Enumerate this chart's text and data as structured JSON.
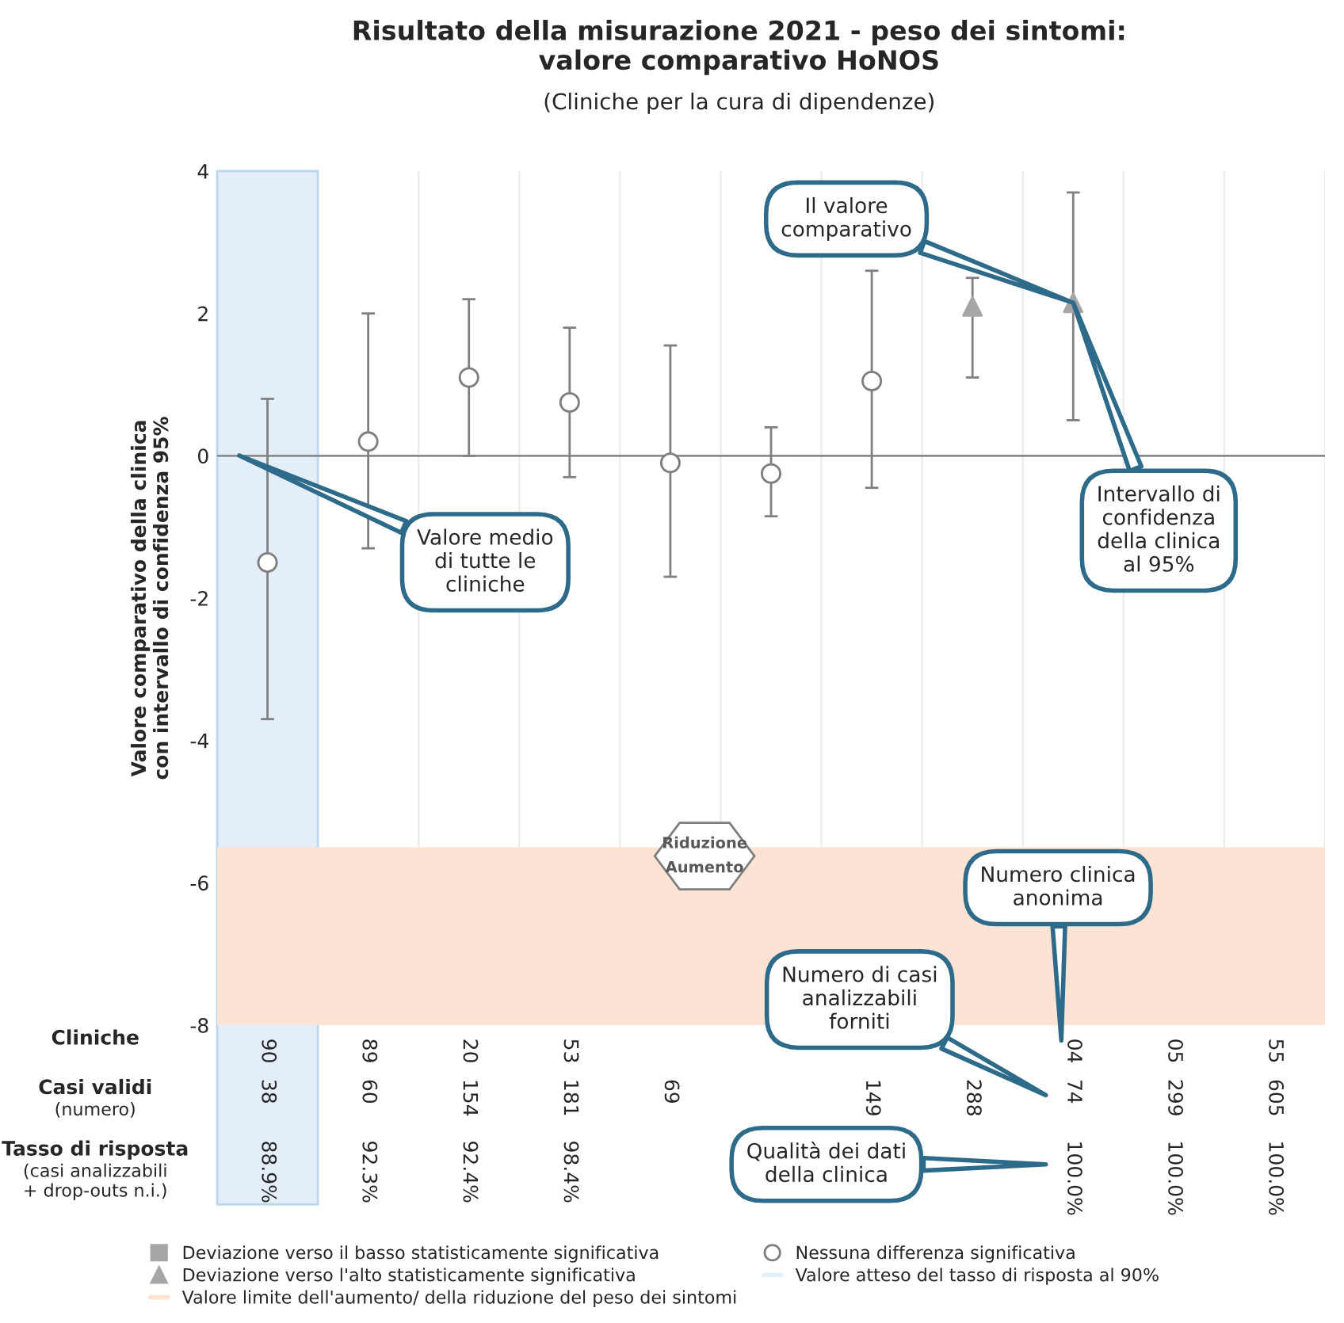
{
  "chart_data": {
    "type": "scatter",
    "title": "Risultato della misurazione 2021 - peso dei sintomi:\nvalore comparativo HoNOS",
    "subtitle": "(Cliniche per la cura di dipendenze)",
    "ylabel": "Valore comparativo della clinica\ncon intervallo di confidenza 95%",
    "categories": [
      "90",
      "89",
      "20",
      "53",
      null,
      null,
      null,
      null,
      "04",
      "05",
      "55"
    ],
    "series": [
      {
        "name": "Deviazione verso il basso statisticamente significativa",
        "color": "#a6a6a6",
        "marker": "square",
        "values": [
          null,
          null,
          null,
          null,
          null,
          null,
          null,
          null,
          null,
          null,
          null
        ],
        "errors": [
          null,
          null,
          null,
          null,
          null,
          null,
          null,
          null,
          null,
          null,
          null
        ]
      },
      {
        "name": "Deviazione verso l'alto statisticamente significativa",
        "color": "#a6a6a6",
        "marker": "triangle",
        "values": [
          null,
          null,
          null,
          null,
          null,
          null,
          null,
          2.1,
          2.15,
          null,
          null
        ],
        "errors": [
          null,
          null,
          null,
          null,
          null,
          null,
          null,
          [
            1.1,
            2.5
          ],
          [
            0.5,
            3.7
          ],
          null,
          null
        ]
      },
      {
        "name": "Nessuna differenza significativa",
        "color": "#7f7f7f",
        "marker": "circle",
        "values": [
          -1.5,
          0.2,
          1.1,
          0.75,
          -0.1,
          -0.25,
          1.05,
          null,
          null,
          null,
          null
        ],
        "errors": [
          [
            -3.7,
            0.8
          ],
          [
            -1.3,
            2.0
          ],
          [
            0.0,
            2.2
          ],
          [
            -0.3,
            1.8
          ],
          [
            -1.7,
            1.55
          ],
          [
            -0.85,
            0.4
          ],
          [
            -0.45,
            2.6
          ],
          null,
          null,
          null,
          null
        ]
      }
    ],
    "ylim": [
      -8,
      4
    ],
    "yticks": [
      -8,
      -6,
      -4,
      -2,
      0,
      2,
      4
    ],
    "grid": "x",
    "legend": "bottom",
    "ref_lines": [
      {
        "axis": "y",
        "value": 0,
        "label": null,
        "color": "#8c8c8c"
      }
    ],
    "bands": [
      {
        "axis": "y",
        "from": -8,
        "to": -5.5,
        "label": "Valore limite dell'aumento/ della riduzione del peso dei sintomi",
        "color": "#fde3d3"
      },
      {
        "axis": "x",
        "from": "90",
        "to": "90",
        "label": "Valore atteso del tasso di risposta al 90%",
        "color": "#e3eef9"
      }
    ],
    "annotations": [
      "Cliniche",
      "Casi validi",
      "(numero)",
      "Tasso di risposta",
      "(casi analizzabili\n+ drop-outs n.i.)",
      "38",
      "60",
      "154",
      "181",
      "69",
      "149",
      "288",
      "74",
      "299",
      "605",
      "88.9%",
      "92.3%",
      "92.4%",
      "98.4%",
      "100.0%",
      "100.0%",
      "100.0%",
      "Riduzione\nAumento",
      {
        "text": "Il valore\ncomparativo",
        "x": "04",
        "y": 2.15
      },
      "Valore medio\ndi tutte le\ncliniche",
      {
        "text": "Intervallo di\nconfidenza\ndella clinica\nal 95%",
        "x": "04",
        "y": 2.15
      },
      "Numero clinica\nanonima",
      "Numero di casi\nanalizzabili\nforniti",
      "Qualità dei dati\ndella clinica"
    ]
  }
}
